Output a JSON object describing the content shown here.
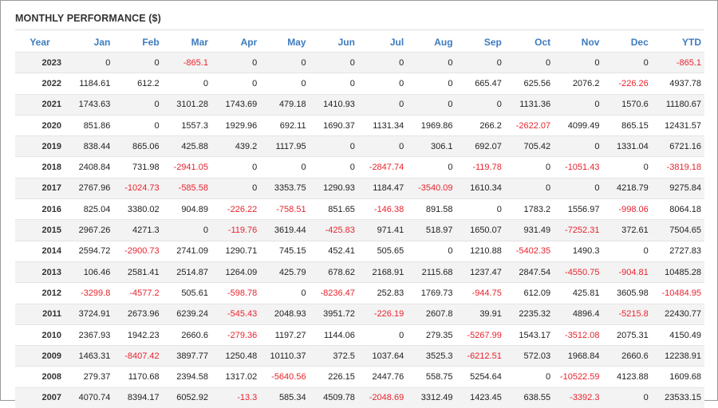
{
  "title": "MONTHLY PERFORMANCE ($)",
  "headers": [
    "Year",
    "Jan",
    "Feb",
    "Mar",
    "Apr",
    "May",
    "Jun",
    "Jul",
    "Aug",
    "Sep",
    "Oct",
    "Nov",
    "Dec",
    "YTD"
  ],
  "colors": {
    "header": "#3d7bbf",
    "negative": "#e8242e",
    "positive": "#222222",
    "stripe": "#f3f3f3"
  },
  "rows": [
    [
      "2023",
      "0",
      "0",
      "-865.1",
      "0",
      "0",
      "0",
      "0",
      "0",
      "0",
      "0",
      "0",
      "0",
      "-865.1"
    ],
    [
      "2022",
      "1184.61",
      "612.2",
      "0",
      "0",
      "0",
      "0",
      "0",
      "0",
      "665.47",
      "625.56",
      "2076.2",
      "-226.26",
      "4937.78"
    ],
    [
      "2021",
      "1743.63",
      "0",
      "3101.28",
      "1743.69",
      "479.18",
      "1410.93",
      "0",
      "0",
      "0",
      "1131.36",
      "0",
      "1570.6",
      "11180.67"
    ],
    [
      "2020",
      "851.86",
      "0",
      "1557.3",
      "1929.96",
      "692.11",
      "1690.37",
      "1131.34",
      "1969.86",
      "266.2",
      "-2622.07",
      "4099.49",
      "865.15",
      "12431.57"
    ],
    [
      "2019",
      "838.44",
      "865.06",
      "425.88",
      "439.2",
      "1117.95",
      "0",
      "0",
      "306.1",
      "692.07",
      "705.42",
      "0",
      "1331.04",
      "6721.16"
    ],
    [
      "2018",
      "2408.84",
      "731.98",
      "-2941.05",
      "0",
      "0",
      "0",
      "-2847.74",
      "0",
      "-119.78",
      "0",
      "-1051.43",
      "0",
      "-3819.18"
    ],
    [
      "2017",
      "2767.96",
      "-1024.73",
      "-585.58",
      "0",
      "3353.75",
      "1290.93",
      "1184.47",
      "-3540.09",
      "1610.34",
      "0",
      "0",
      "4218.79",
      "9275.84"
    ],
    [
      "2016",
      "825.04",
      "3380.02",
      "904.89",
      "-226.22",
      "-758.51",
      "851.65",
      "-146.38",
      "891.58",
      "0",
      "1783.2",
      "1556.97",
      "-998.06",
      "8064.18"
    ],
    [
      "2015",
      "2967.26",
      "4271.3",
      "0",
      "-119.76",
      "3619.44",
      "-425.83",
      "971.41",
      "518.97",
      "1650.07",
      "931.49",
      "-7252.31",
      "372.61",
      "7504.65"
    ],
    [
      "2014",
      "2594.72",
      "-2900.73",
      "2741.09",
      "1290.71",
      "745.15",
      "452.41",
      "505.65",
      "0",
      "1210.88",
      "-5402.35",
      "1490.3",
      "0",
      "2727.83"
    ],
    [
      "2013",
      "106.46",
      "2581.41",
      "2514.87",
      "1264.09",
      "425.79",
      "678.62",
      "2168.91",
      "2115.68",
      "1237.47",
      "2847.54",
      "-4550.75",
      "-904.81",
      "10485.28"
    ],
    [
      "2012",
      "-3299.8",
      "-4577.2",
      "505.61",
      "-598.78",
      "0",
      "-8236.47",
      "252.83",
      "1769.73",
      "-944.75",
      "612.09",
      "425.81",
      "3605.98",
      "-10484.95"
    ],
    [
      "2011",
      "3724.91",
      "2673.96",
      "6239.24",
      "-545.43",
      "2048.93",
      "3951.72",
      "-226.19",
      "2607.8",
      "39.91",
      "2235.32",
      "4896.4",
      "-5215.8",
      "22430.77"
    ],
    [
      "2010",
      "2367.93",
      "1942.23",
      "2660.6",
      "-279.36",
      "1197.27",
      "1144.06",
      "0",
      "279.35",
      "-5267.99",
      "1543.17",
      "-3512.08",
      "2075.31",
      "4150.49"
    ],
    [
      "2009",
      "1463.31",
      "-8407.42",
      "3897.77",
      "1250.48",
      "10110.37",
      "372.5",
      "1037.64",
      "3525.3",
      "-6212.51",
      "572.03",
      "1968.84",
      "2660.6",
      "12238.91"
    ],
    [
      "2008",
      "279.37",
      "1170.68",
      "2394.58",
      "1317.02",
      "-5640.56",
      "226.15",
      "2447.76",
      "558.75",
      "5254.64",
      "0",
      "-10522.59",
      "4123.88",
      "1609.68"
    ],
    [
      "2007",
      "4070.74",
      "8394.17",
      "6052.92",
      "-13.3",
      "585.34",
      "4509.78",
      "-2048.69",
      "3312.49",
      "1423.45",
      "638.55",
      "-3392.3",
      "0",
      "23533.15"
    ]
  ]
}
